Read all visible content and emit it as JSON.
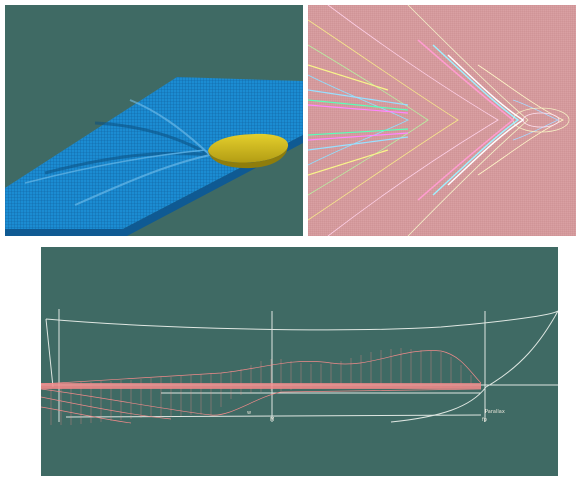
{
  "panels": [
    {
      "id": "wave-mesh-3d",
      "content": "3d-wave-mesh-with-hull"
    },
    {
      "id": "wave-contours",
      "content": "colored-contour-pattern"
    },
    {
      "id": "hull-profile",
      "content": "hull-side-profile-wireframe"
    }
  ],
  "colors": {
    "panel_background": "#3f6a64",
    "mesh_blue": "#1a8fd6",
    "hull_yellow": "#c9b41d",
    "contour_background": "#d7a3a6",
    "profile_lines": "#dfe7e2",
    "profile_mesh": "#f08a8a"
  },
  "profile_labels": {
    "small_label_left": "w",
    "small_label_mid": "M",
    "small_label_right": "fp",
    "small_label_far": "Parallax"
  }
}
